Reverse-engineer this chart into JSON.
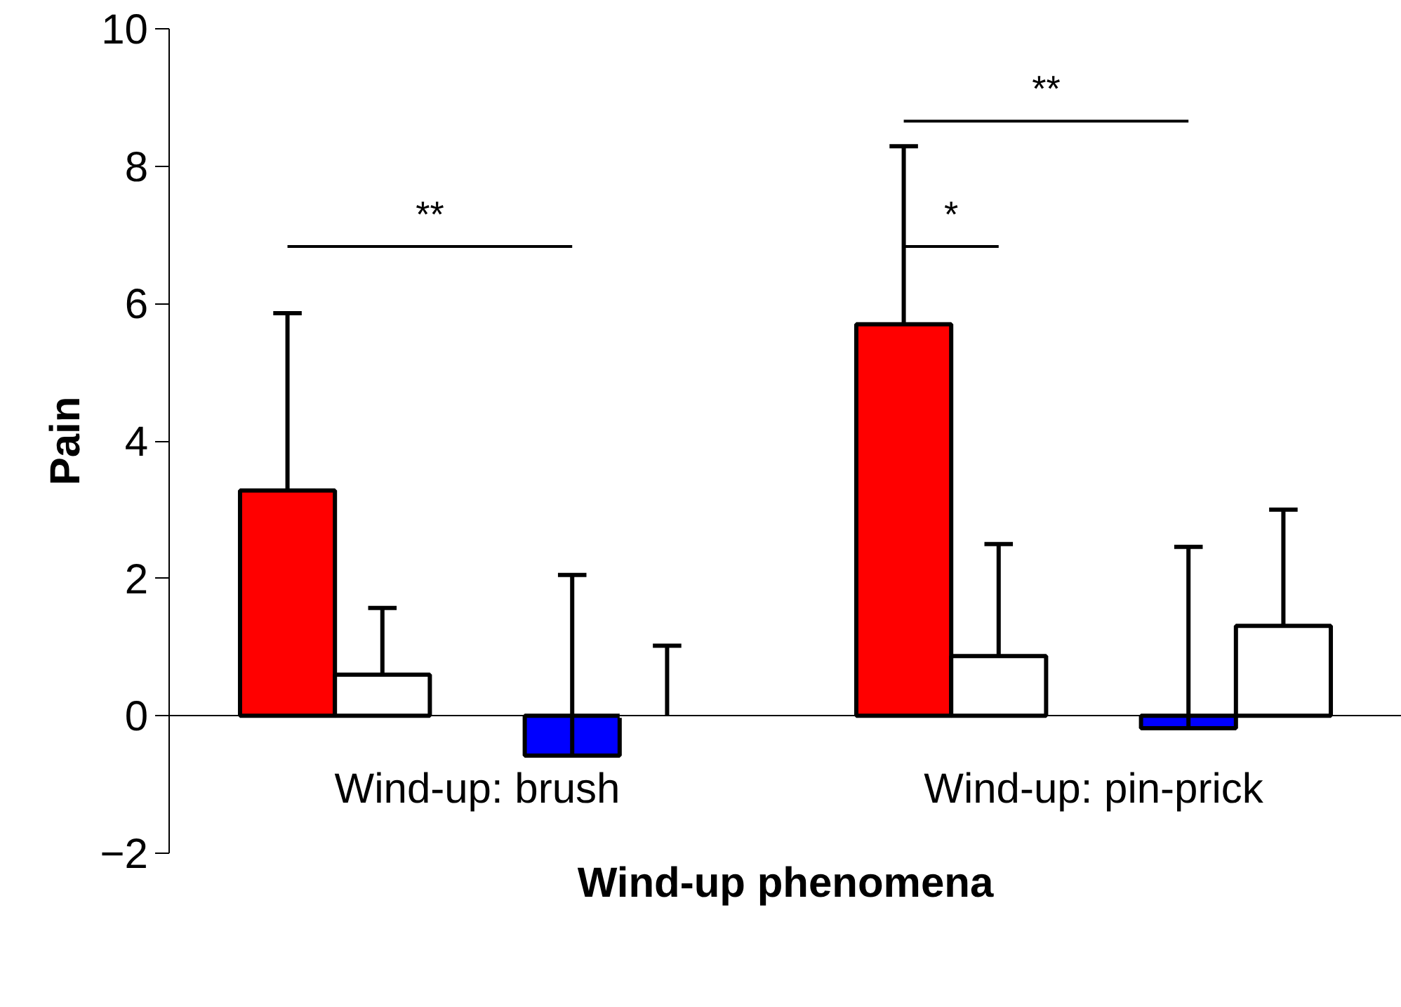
{
  "chart_data": {
    "type": "bar",
    "xlabel": "Wind-up phenomena",
    "ylabel": "Pain",
    "categories": [
      "Wind-up: brush",
      "Wind-up: pin-prick"
    ],
    "series": [
      {
        "color": "#ff0000",
        "values": [
          3.28,
          5.7
        ],
        "errors": [
          [
            3.28,
            5.86
          ],
          [
            5.7,
            8.29
          ]
        ]
      },
      {
        "color": "#ffffff",
        "values": [
          0.6,
          0.87
        ],
        "errors": [
          [
            0.6,
            1.57
          ],
          [
            0.87,
            2.5
          ]
        ]
      },
      {
        "color": "#0000ff",
        "values": [
          -0.58,
          -0.18
        ],
        "errors": [
          [
            -0.58,
            2.05
          ],
          [
            -0.18,
            2.46
          ]
        ]
      },
      {
        "color": "#ffffff",
        "values": [
          0,
          1.31
        ],
        "errors": [
          [
            0,
            1.02
          ],
          [
            1.31,
            3.0
          ]
        ]
      }
    ],
    "ylim": [
      -2,
      10
    ],
    "yticks": [
      -2,
      0,
      2,
      4,
      6,
      8,
      10
    ],
    "grid": false,
    "annotations": [
      "**",
      "*",
      "**"
    ]
  }
}
